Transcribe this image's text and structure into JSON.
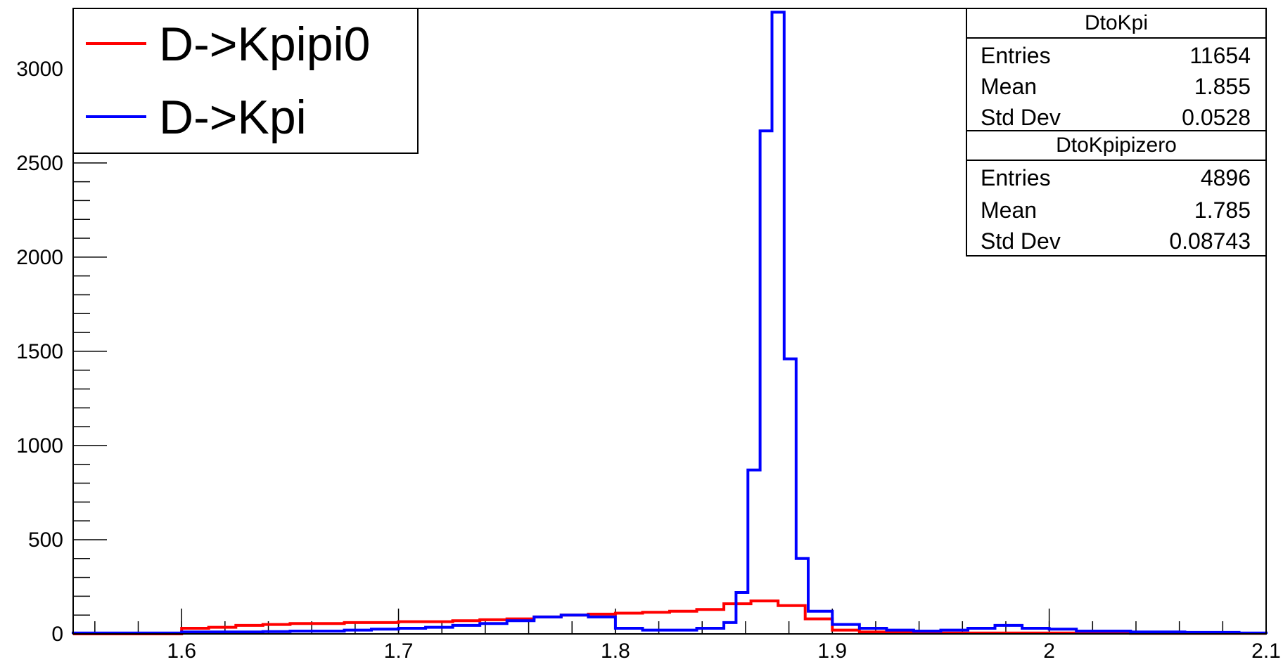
{
  "chart_data": {
    "type": "line",
    "title": "",
    "xlabel": "",
    "ylabel": "",
    "xlim": [
      1.55,
      2.1
    ],
    "ylim": [
      0,
      3300
    ],
    "grid": false,
    "legend_position": "top-left",
    "x_ticks": [
      {
        "value": 1.6,
        "label": "1.6"
      },
      {
        "value": 1.7,
        "label": "1.7"
      },
      {
        "value": 1.8,
        "label": "1.8"
      },
      {
        "value": 1.9,
        "label": "1.9"
      },
      {
        "value": 2.0,
        "label": "2"
      },
      {
        "value": 2.1,
        "label": "2.1"
      }
    ],
    "y_ticks": [
      {
        "value": 0,
        "label": "0"
      },
      {
        "value": 500,
        "label": "500"
      },
      {
        "value": 1000,
        "label": "1000"
      },
      {
        "value": 1500,
        "label": "1500"
      },
      {
        "value": 2000,
        "label": "2000"
      },
      {
        "value": 2500,
        "label": "2500"
      },
      {
        "value": 3000,
        "label": "3000"
      }
    ],
    "legend": [
      {
        "label": "D->Kpipi0",
        "color": "#ff0000"
      },
      {
        "label": "D->Kpi",
        "color": "#0000ff"
      }
    ],
    "series": [
      {
        "name": "D->Kpipi0",
        "hist_name": "DtoKpipizero",
        "color": "#ff0000",
        "bin_edges": [
          1.55,
          1.5625,
          1.575,
          1.5875,
          1.6,
          1.6125,
          1.625,
          1.6375,
          1.65,
          1.6625,
          1.675,
          1.6875,
          1.7,
          1.7125,
          1.725,
          1.7375,
          1.75,
          1.7625,
          1.775,
          1.7875,
          1.8,
          1.8125,
          1.825,
          1.8375,
          1.85,
          1.8625,
          1.875,
          1.8875,
          1.9,
          1.9125,
          1.925,
          1.9375,
          1.95,
          1.9625,
          1.975,
          1.9875,
          2.0,
          2.0125,
          2.025,
          2.0375,
          2.05,
          2.0625,
          2.075,
          2.0875,
          2.1
        ],
        "values": [
          0,
          0,
          0,
          0,
          30,
          35,
          45,
          50,
          55,
          55,
          60,
          60,
          65,
          65,
          70,
          75,
          80,
          90,
          100,
          105,
          110,
          115,
          120,
          130,
          160,
          175,
          150,
          80,
          20,
          10,
          8,
          8,
          5,
          5,
          5,
          5,
          5,
          5,
          5,
          3,
          3,
          3,
          3,
          3
        ]
      },
      {
        "name": "D->Kpi",
        "hist_name": "DtoKpi",
        "color": "#0000ff",
        "bin_edges": [
          1.55,
          1.5625,
          1.575,
          1.5875,
          1.6,
          1.6125,
          1.625,
          1.6375,
          1.65,
          1.6625,
          1.675,
          1.6875,
          1.7,
          1.7125,
          1.725,
          1.7375,
          1.75,
          1.7625,
          1.775,
          1.7875,
          1.8,
          1.8125,
          1.825,
          1.8375,
          1.85,
          1.8556,
          1.8611,
          1.8667,
          1.8722,
          1.8778,
          1.8833,
          1.8889,
          1.9,
          1.9125,
          1.925,
          1.9375,
          1.95,
          1.9625,
          1.975,
          1.9875,
          2.0,
          2.0125,
          2.025,
          2.0375,
          2.05,
          2.0625,
          2.075,
          2.0875,
          2.1
        ],
        "values": [
          5,
          5,
          5,
          5,
          10,
          10,
          10,
          12,
          15,
          15,
          20,
          25,
          30,
          35,
          45,
          55,
          70,
          90,
          100,
          90,
          30,
          20,
          20,
          30,
          60,
          220,
          870,
          2670,
          3300,
          1460,
          400,
          120,
          50,
          30,
          20,
          15,
          20,
          30,
          45,
          30,
          25,
          15,
          15,
          10,
          10,
          8,
          8,
          5
        ]
      }
    ]
  },
  "stats_boxes": [
    {
      "title": "DtoKpi",
      "rows": [
        {
          "label": "Entries",
          "value": "11654"
        },
        {
          "label": "Mean",
          "value": "1.855"
        },
        {
          "label": "Std Dev",
          "value": "0.0528"
        }
      ]
    },
    {
      "title": "DtoKpipizero",
      "rows": [
        {
          "label": "Entries",
          "value": "4896"
        },
        {
          "label": "Mean",
          "value": "1.785"
        },
        {
          "label": "Std Dev",
          "value": "0.08743"
        }
      ]
    }
  ]
}
